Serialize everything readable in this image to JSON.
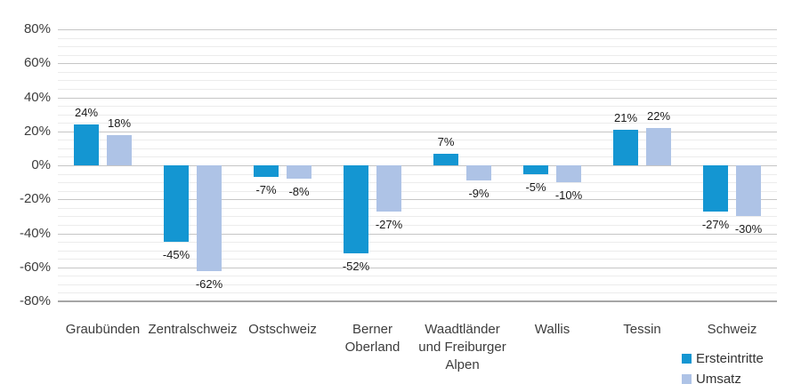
{
  "chart_data": {
    "type": "bar",
    "title": "",
    "categories": [
      "Graubünden",
      "Zentralschweiz",
      "Ostschweiz",
      "Berner Oberland",
      "Waadtländer und Freiburger Alpen",
      "Wallis",
      "Tessin",
      "Schweiz"
    ],
    "series": [
      {
        "name": "Ersteintritte",
        "color": "#1496d2",
        "values": [
          24,
          -45,
          -7,
          -52,
          7,
          -5,
          21,
          -27
        ],
        "labels": [
          "24%",
          "-45%",
          "-7%",
          "-52%",
          "7%",
          "-5%",
          "21%",
          "-27%"
        ]
      },
      {
        "name": "Umsatz",
        "color": "#aec3e6",
        "values": [
          18,
          -62,
          -8,
          -27,
          -9,
          -10,
          22,
          -30
        ],
        "labels": [
          "18%",
          "-62%",
          "-8%",
          "-27%",
          "-9%",
          "-10%",
          "22%",
          "-30%"
        ]
      }
    ],
    "ylim": [
      -80,
      80
    ],
    "yticks": [
      {
        "v": 80,
        "label": "80%"
      },
      {
        "v": 60,
        "label": "60%"
      },
      {
        "v": 40,
        "label": "40%"
      },
      {
        "v": 20,
        "label": "20%"
      },
      {
        "v": 0,
        "label": "0%"
      },
      {
        "v": -20,
        "label": "-20%"
      },
      {
        "v": -40,
        "label": "-40%"
      },
      {
        "v": -60,
        "label": "-60%"
      },
      {
        "v": -80,
        "label": "-80%"
      }
    ],
    "ytick_minor_step": 5,
    "grid": true,
    "legend_position": "bottom-right",
    "colors": {
      "grid_major": "#c6c6c6",
      "grid_minor": "#ececec",
      "axis_line": "#a6a6a6",
      "axis_text": "#3d3d3d",
      "data_label_text": "#1a1a1a"
    }
  }
}
